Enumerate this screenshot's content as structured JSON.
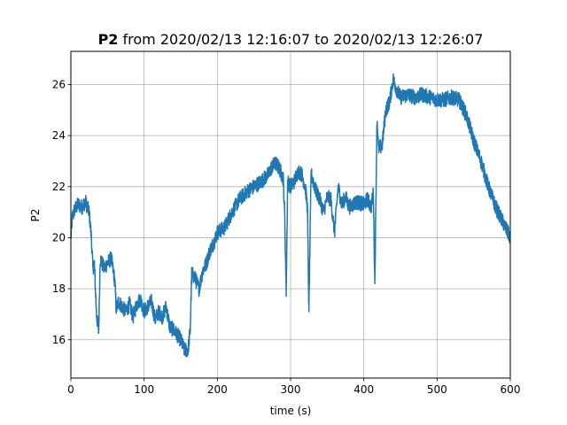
{
  "chart_data": {
    "type": "line",
    "title": {
      "bold": "P2",
      "rest": " from 2020/02/13 12:16:07 to 2020/02/13 12:26:07"
    },
    "xlabel": "time (s)",
    "ylabel": "P2",
    "xlim": [
      0,
      600
    ],
    "ylim": [
      14.5,
      27.3
    ],
    "xticks": [
      0,
      100,
      200,
      300,
      400,
      500,
      600
    ],
    "yticks": [
      16,
      18,
      20,
      22,
      24,
      26
    ],
    "grid": true,
    "colors": {
      "line": "#1f77b4",
      "grid": "#b0b0b0",
      "axis": "#000000"
    },
    "series": [
      {
        "x": [
          0,
          2,
          5,
          10,
          15,
          20,
          25,
          28,
          30,
          32,
          35,
          38,
          40,
          45,
          50,
          55,
          60,
          62,
          65,
          70,
          75,
          80,
          85,
          90,
          95,
          100,
          105,
          110,
          115,
          120,
          125,
          130,
          135,
          140,
          145,
          150,
          155,
          160,
          163,
          165,
          170,
          175,
          180,
          185,
          190,
          195,
          200,
          210,
          220,
          230,
          240,
          250,
          260,
          270,
          275,
          280,
          285,
          290,
          292,
          294,
          296,
          300,
          305,
          310,
          315,
          320,
          323,
          325,
          328,
          330,
          335,
          340,
          345,
          350,
          355,
          360,
          365,
          370,
          375,
          380,
          390,
          400,
          405,
          410,
          413,
          415,
          418,
          420,
          425,
          430,
          435,
          440,
          445,
          450,
          460,
          470,
          480,
          490,
          500,
          510,
          520,
          530,
          540,
          550,
          560,
          570,
          580,
          590,
          595,
          600
        ],
        "y": [
          20.0,
          20.8,
          21.1,
          21.3,
          21.2,
          21.4,
          21.0,
          20.0,
          18.8,
          19.0,
          17.0,
          16.3,
          19.2,
          18.8,
          19.0,
          19.2,
          18.3,
          17.2,
          17.5,
          17.3,
          17.1,
          17.4,
          16.9,
          17.4,
          17.6,
          17.1,
          17.3,
          17.5,
          16.8,
          17.1,
          16.9,
          17.3,
          16.5,
          16.4,
          16.2,
          16.0,
          15.6,
          15.6,
          16.4,
          18.6,
          18.4,
          18.0,
          18.7,
          19.0,
          19.5,
          19.8,
          20.2,
          20.4,
          21.0,
          21.5,
          21.8,
          22.0,
          22.2,
          22.5,
          22.8,
          22.9,
          22.7,
          22.3,
          20.8,
          17.9,
          22.2,
          22.0,
          22.2,
          22.6,
          22.5,
          22.0,
          21.2,
          17.1,
          22.5,
          22.3,
          21.8,
          21.5,
          21.0,
          21.6,
          21.5,
          20.2,
          22.0,
          21.3,
          21.6,
          21.2,
          21.4,
          21.3,
          21.5,
          21.2,
          21.8,
          18.2,
          24.7,
          23.5,
          23.6,
          25.0,
          25.3,
          26.2,
          25.8,
          25.5,
          25.6,
          25.5,
          25.6,
          25.5,
          25.4,
          25.4,
          25.5,
          25.4,
          24.8,
          23.8,
          23.0,
          22.0,
          21.2,
          20.6,
          20.3,
          20.0
        ]
      }
    ]
  }
}
